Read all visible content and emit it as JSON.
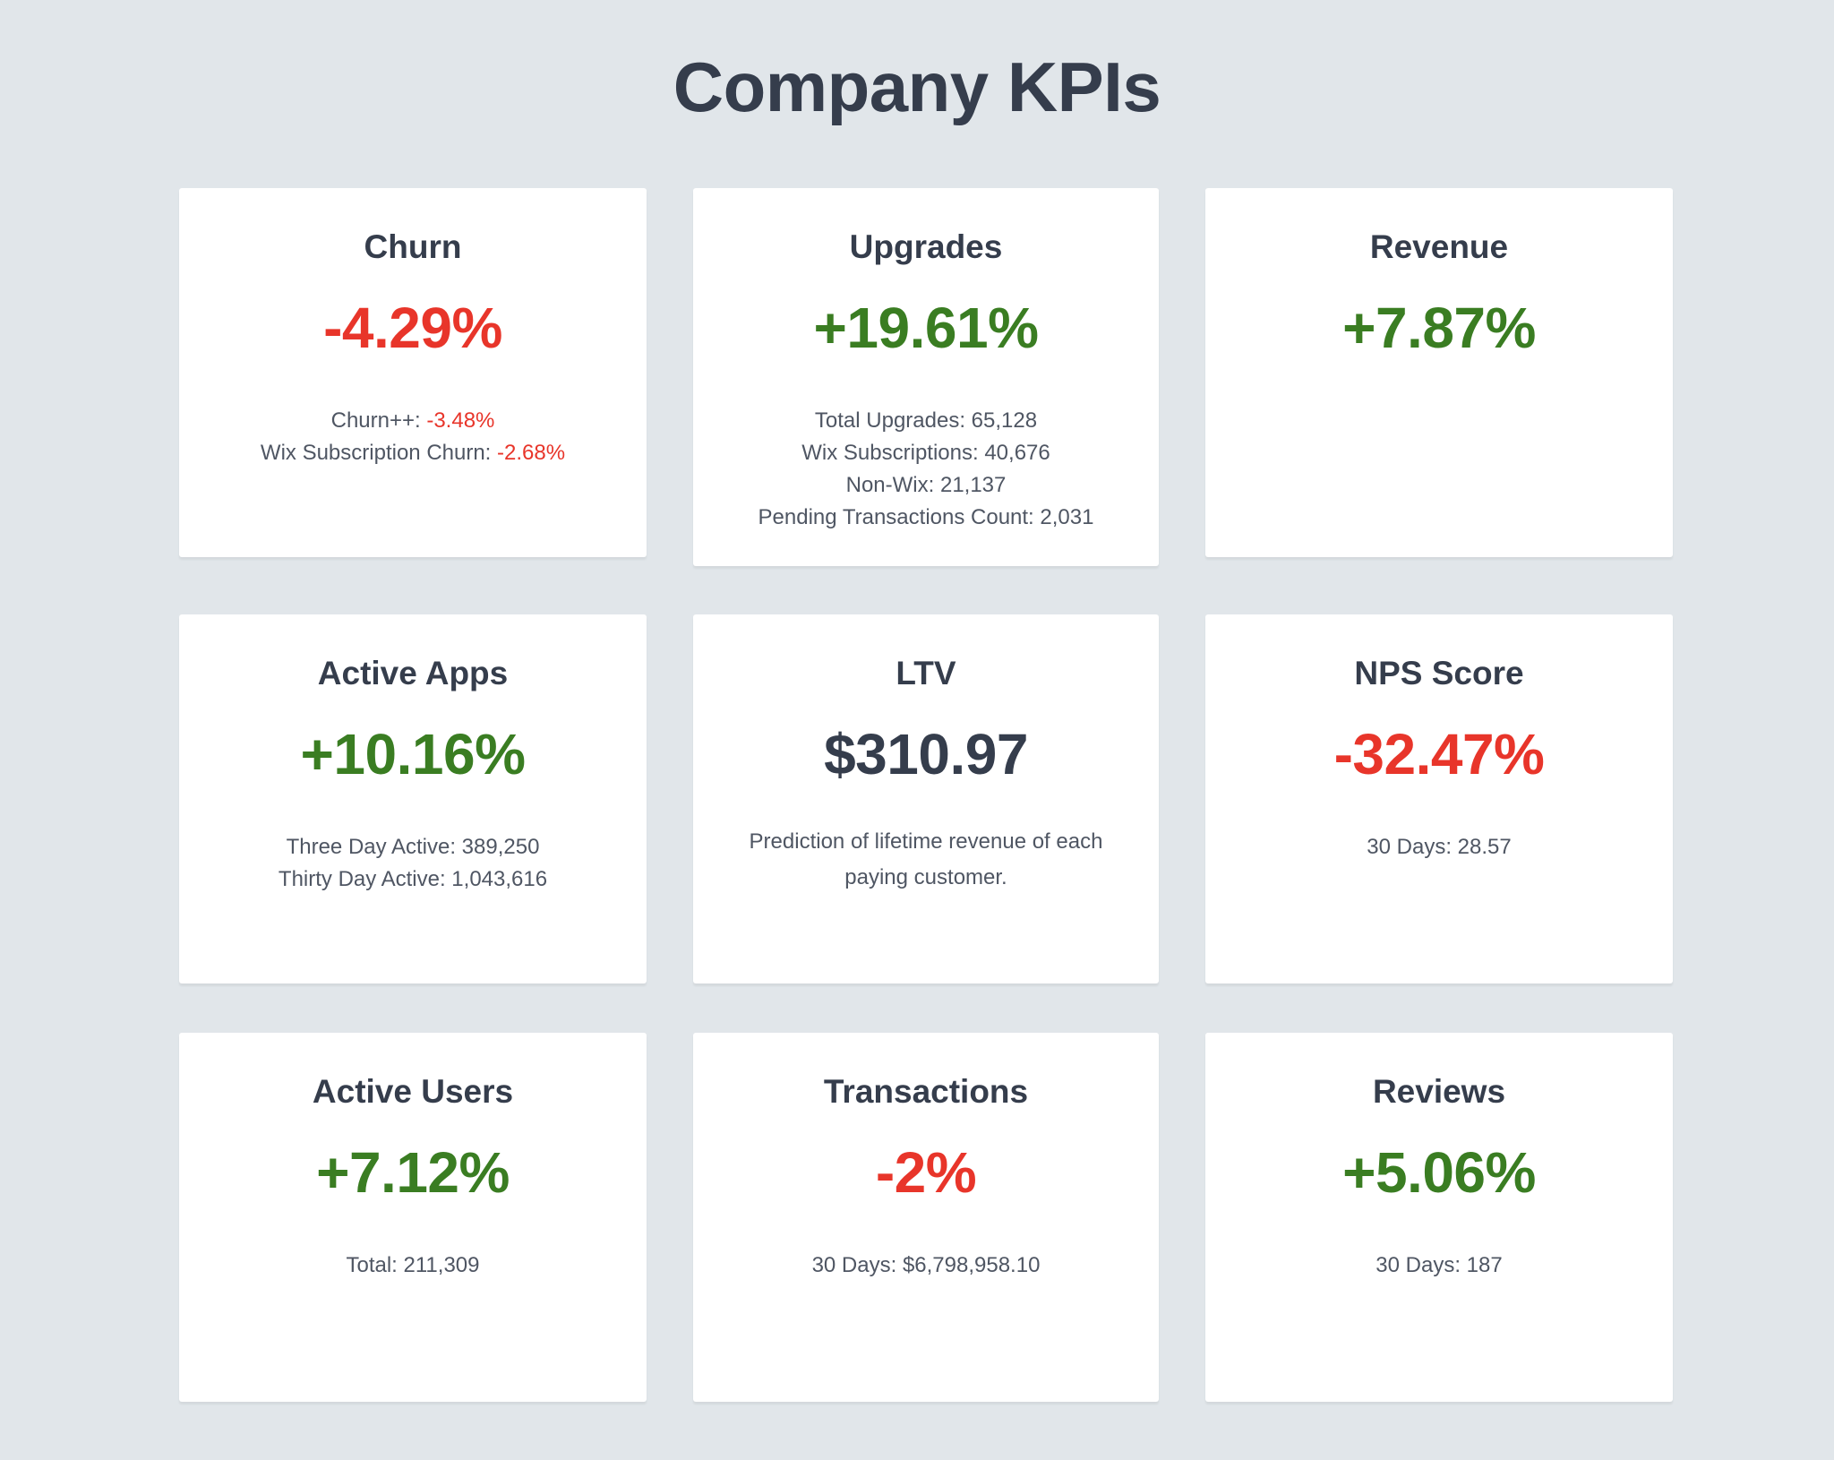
{
  "title": "Company KPIs",
  "colors": {
    "positive": "#3a7d22",
    "negative": "#e8352a",
    "neutral": "#353d4c",
    "background": "#e1e6ea"
  },
  "cards": [
    {
      "title": "Churn",
      "value": "-4.29%",
      "trend": "negative",
      "details": [
        {
          "label": "Churn++: ",
          "value": "-3.48%"
        },
        {
          "label": "Wix Subscription Churn: ",
          "value": "-2.68%"
        }
      ]
    },
    {
      "title": "Upgrades",
      "value": "+19.61%",
      "trend": "positive",
      "details": [
        {
          "label": "Total Upgrades: 65,128"
        },
        {
          "label": "Wix Subscriptions: 40,676"
        },
        {
          "label": "Non-Wix: 21,137"
        },
        {
          "label": "Pending Transactions Count: 2,031"
        }
      ]
    },
    {
      "title": "Revenue",
      "value": "+7.87%",
      "trend": "positive",
      "details": []
    },
    {
      "title": "Active Apps",
      "value": "+10.16%",
      "trend": "positive",
      "details": [
        {
          "label": "Three Day Active: 389,250"
        },
        {
          "label": "Thirty Day Active: 1,043,616"
        }
      ]
    },
    {
      "title": "LTV",
      "value": "$310.97",
      "trend": "neutral",
      "description": "Prediction of lifetime revenue of each paying customer."
    },
    {
      "title": "NPS Score",
      "value": "-32.47%",
      "trend": "negative",
      "details": [
        {
          "label": "30 Days: 28.57"
        }
      ]
    },
    {
      "title": "Active Users",
      "value": "+7.12%",
      "trend": "positive",
      "details": [
        {
          "label": "Total: 211,309"
        }
      ]
    },
    {
      "title": "Transactions",
      "value": "-2%",
      "trend": "negative",
      "details": [
        {
          "label": "30 Days: $6,798,958.10"
        }
      ]
    },
    {
      "title": "Reviews",
      "value": "+5.06%",
      "trend": "positive",
      "details": [
        {
          "label": "30 Days: 187"
        }
      ]
    }
  ]
}
